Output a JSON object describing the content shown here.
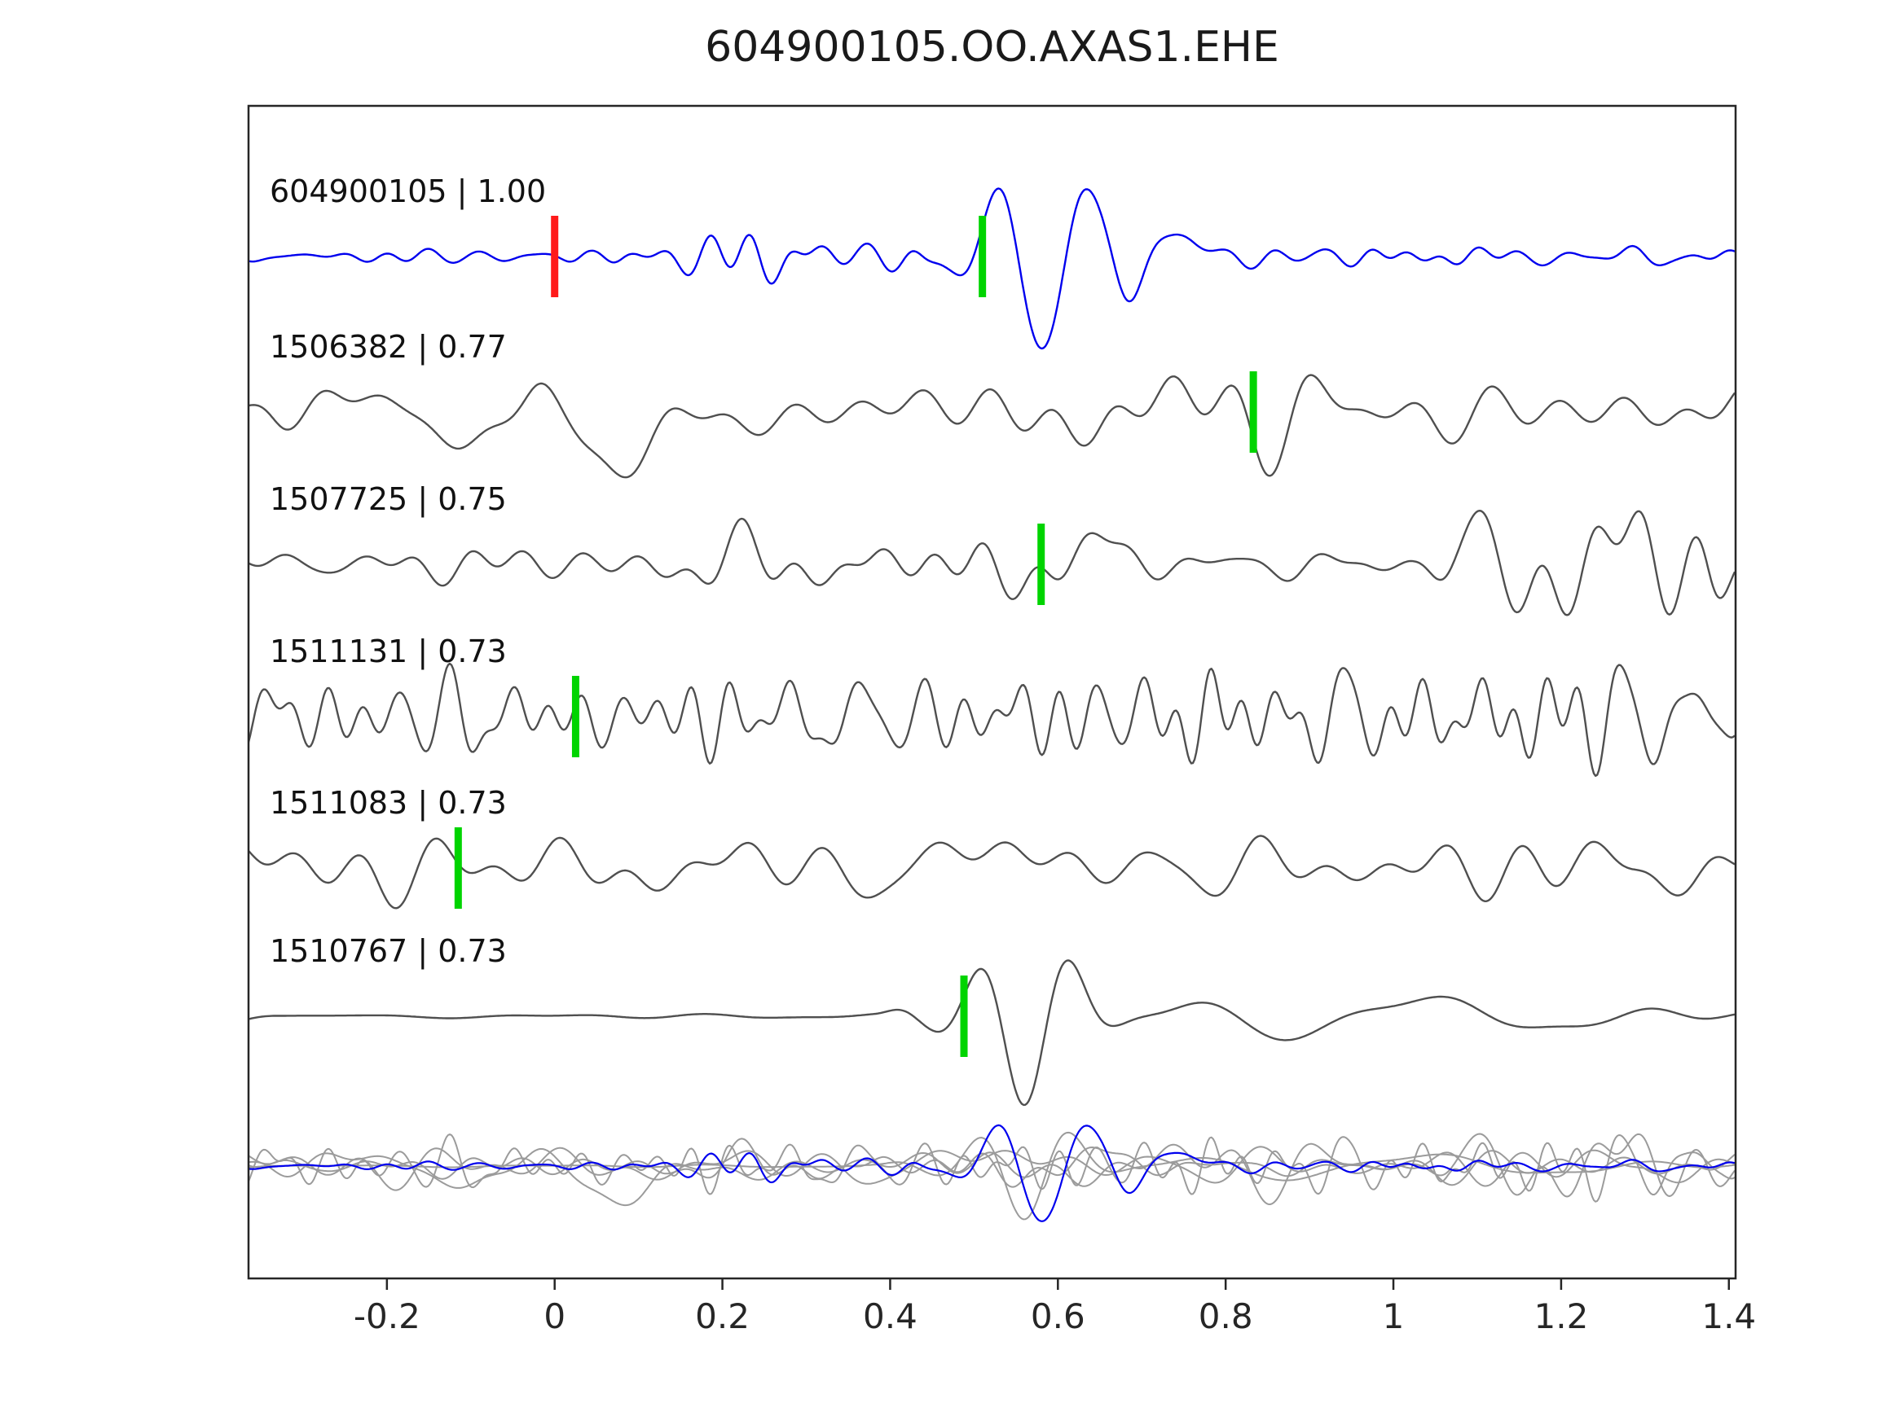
{
  "chart_data": {
    "type": "line",
    "title": "604900105.OO.AXAS1.EHE",
    "xlabel": "",
    "ylabel": "",
    "xlim": [
      -0.365,
      1.408
    ],
    "xticks": [
      -0.2,
      0,
      0.2,
      0.4,
      0.6,
      0.8,
      1,
      1.2,
      1.4
    ],
    "xtick_labels": [
      "-0.2",
      "0",
      "0.2",
      "0.4",
      "0.6",
      "0.8",
      "1",
      "1.2",
      "1.4"
    ],
    "grid": false,
    "legend": "none",
    "colors": {
      "template": "#0000ee",
      "detection": "#4f4f4f",
      "overlay_gray": "#9b9b9b",
      "pick_green": "#00d400",
      "pick_red": "#ff1a1a",
      "axis": "#262626"
    },
    "traces": [
      {
        "id": "604900105",
        "cc": 1.0,
        "label": "604900105 | 1.00",
        "role": "template",
        "picks": [
          {
            "t": 0.0,
            "color": "red"
          },
          {
            "t": 0.51,
            "color": "green"
          }
        ],
        "gen": {
          "seed": 11,
          "noise": {
            "amp": 5.5,
            "f": [
              6,
              26
            ],
            "n": 26
          },
          "env": [
            [
              -0.37,
              0.04,
              0.55
            ],
            [
              0.04,
              0.47,
              2.2
            ],
            [
              0.47,
              0.78,
              0.8
            ],
            [
              0.78,
              1.42,
              1.4
            ]
          ],
          "events": [
            {
              "a": 118,
              "f": 9,
              "t0": 0.585,
              "sig": 0.09,
              "phase": -1.35
            },
            {
              "a": 26,
              "f": 5,
              "t0": 0.72,
              "sig": 0.06,
              "phase": 0.6
            }
          ]
        }
      },
      {
        "id": "1506382",
        "cc": 0.77,
        "label": "1506382 | 0.77",
        "role": "detection",
        "picks": [
          {
            "t": 0.833,
            "color": "green"
          }
        ],
        "gen": {
          "seed": 22,
          "noise": {
            "amp": 20,
            "f": [
              2.5,
              16
            ],
            "n": 30
          },
          "env": [
            [
              -0.37,
              0.02,
              1.3
            ]
          ],
          "events": [
            {
              "a": 95,
              "f": 2.3,
              "t0": 0.075,
              "sig": 0.045,
              "phase": -1.57
            }
          ]
        }
      },
      {
        "id": "1507725",
        "cc": 0.75,
        "label": "1507725 | 0.75",
        "role": "detection",
        "picks": [
          {
            "t": 0.58,
            "color": "green"
          }
        ],
        "gen": {
          "seed": 33,
          "noise": {
            "amp": 12,
            "f": [
              3.5,
              18
            ],
            "n": 30
          },
          "env": [
            [
              1.02,
              1.42,
              2.7
            ]
          ],
          "events": [
            {
              "a": 38,
              "f": 4.5,
              "t0": 0.61,
              "sig": 0.07,
              "phase": 0.3
            }
          ]
        }
      },
      {
        "id": "1511131",
        "cc": 0.73,
        "label": "1511131 | 0.73",
        "role": "detection",
        "picks": [
          {
            "t": 0.025,
            "color": "green"
          }
        ],
        "gen": {
          "seed": 44,
          "noise": {
            "amp": 26,
            "f": [
              7,
              28
            ],
            "n": 36
          },
          "env": [],
          "events": []
        }
      },
      {
        "id": "1511083",
        "cc": 0.73,
        "label": "1511083 | 0.73",
        "role": "detection",
        "picks": [
          {
            "t": -0.115,
            "color": "green"
          }
        ],
        "gen": {
          "seed": 55,
          "noise": {
            "amp": 18,
            "f": [
              3,
              14
            ],
            "n": 30
          },
          "env": [],
          "events": [
            {
              "a": 45,
              "f": 4.2,
              "t0": 0.53,
              "sig": 0.06,
              "phase": 1.2
            }
          ]
        }
      },
      {
        "id": "1510767",
        "cc": 0.73,
        "label": "1510767 | 0.73",
        "role": "detection",
        "picks": [
          {
            "t": 0.488,
            "color": "green"
          }
        ],
        "gen": {
          "seed": 66,
          "noise": {
            "amp": 7,
            "f": [
              2,
              9
            ],
            "n": 24
          },
          "env": [
            [
              -0.37,
              0.43,
              0.22
            ]
          ],
          "events": [
            {
              "a": 112,
              "f": 8.5,
              "t0": 0.565,
              "sig": 0.075,
              "phase": -1.2
            },
            {
              "a": 26,
              "f": 3.2,
              "t0": 0.95,
              "sig": 0.28,
              "phase": 0
            }
          ]
        }
      }
    ],
    "overlay": {
      "scale": 0.6,
      "order": [
        1,
        2,
        3,
        4,
        5
      ],
      "template_on_top": true
    }
  }
}
